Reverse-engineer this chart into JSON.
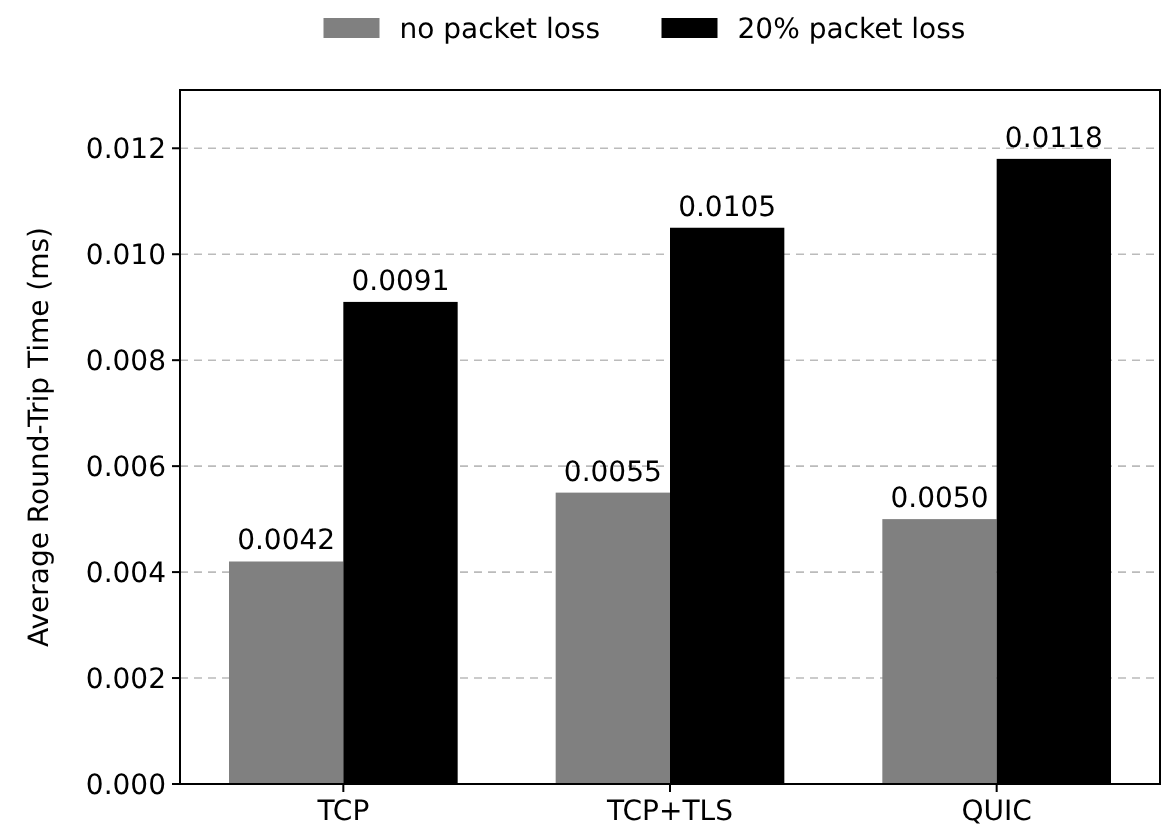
{
  "chart_data": {
    "type": "bar",
    "ylabel": "Average Round-Trip Time (ms)",
    "categories": [
      "TCP",
      "TCP+TLS",
      "QUIC"
    ],
    "series": [
      {
        "name": "no packet loss",
        "color": "#808080",
        "values": [
          0.0042,
          0.0055,
          0.005
        ],
        "value_labels": [
          "0.0042",
          "0.0055",
          "0.0050"
        ]
      },
      {
        "name": "20% packet loss",
        "color": "#000000",
        "values": [
          0.0091,
          0.0105,
          0.0118
        ],
        "value_labels": [
          "0.0091",
          "0.0105",
          "0.0118"
        ]
      }
    ],
    "ylim": [
      0,
      0.0131
    ],
    "yticks": [
      {
        "value": 0,
        "label": "0.000"
      },
      {
        "value": 0.002,
        "label": "0.002"
      },
      {
        "value": 0.004,
        "label": "0.004"
      },
      {
        "value": 0.006,
        "label": "0.006"
      },
      {
        "value": 0.008,
        "label": "0.008"
      },
      {
        "value": 0.01,
        "label": "0.010"
      },
      {
        "value": 0.012,
        "label": "0.012"
      }
    ],
    "grid": "y",
    "legend": "top"
  }
}
